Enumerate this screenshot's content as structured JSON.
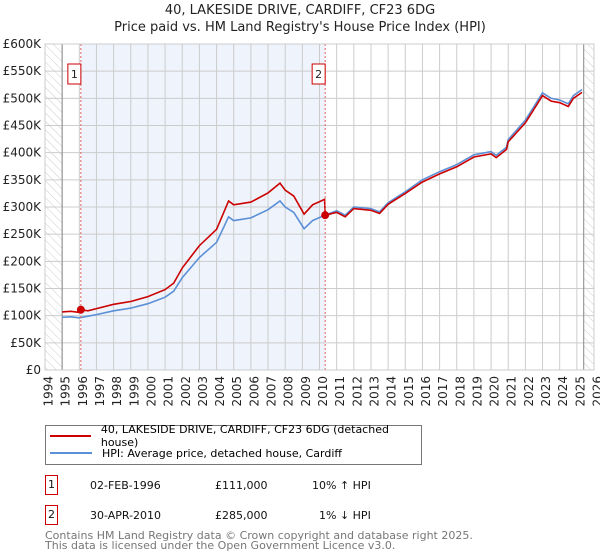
{
  "chart_data": {
    "type": "line",
    "title": "40, LAKESIDE DRIVE, CARDIFF, CF23 6DG",
    "subtitle": "Price paid vs. HM Land Registry's House Price Index (HPI)",
    "xlim": [
      1994,
      2026
    ],
    "ylim": [
      0,
      600000
    ],
    "x_ticks": [
      "1994",
      "1995",
      "1996",
      "1997",
      "1998",
      "1999",
      "2000",
      "2001",
      "2002",
      "2003",
      "2004",
      "2005",
      "2006",
      "2007",
      "2008",
      "2009",
      "2010",
      "2011",
      "2012",
      "2013",
      "2014",
      "2015",
      "2016",
      "2017",
      "2018",
      "2019",
      "2020",
      "2021",
      "2022",
      "2023",
      "2024",
      "2025",
      "2026"
    ],
    "y_ticks": [
      {
        "v": 0,
        "label": "£0"
      },
      {
        "v": 50000,
        "label": "£50K"
      },
      {
        "v": 100000,
        "label": "£100K"
      },
      {
        "v": 150000,
        "label": "£150K"
      },
      {
        "v": 200000,
        "label": "£200K"
      },
      {
        "v": 250000,
        "label": "£250K"
      },
      {
        "v": 300000,
        "label": "£300K"
      },
      {
        "v": 350000,
        "label": "£350K"
      },
      {
        "v": 400000,
        "label": "£400K"
      },
      {
        "v": 450000,
        "label": "£450K"
      },
      {
        "v": 500000,
        "label": "£500K"
      },
      {
        "v": 550000,
        "label": "£550K"
      },
      {
        "v": 600000,
        "label": "£600K"
      }
    ],
    "grid": true,
    "series": [
      {
        "name": "40, LAKESIDE DRIVE, CARDIFF, CF23 6DG (detached house)",
        "color": "#cc0000",
        "x": [
          1995,
          1995.5,
          1996,
          1996.09,
          1996.5,
          1997,
          1998,
          1999,
          2000,
          2001,
          2001.5,
          2002,
          2003,
          2004,
          2004.7,
          2005,
          2006,
          2007,
          2007.7,
          2008,
          2008.5,
          2009.1,
          2009.6,
          2010.3,
          2010.33,
          2011,
          2011.5,
          2012,
          2013,
          2013.5,
          2014,
          2015,
          2016,
          2017,
          2018,
          2019,
          2020,
          2020.3,
          2020.9,
          2021,
          2022,
          2022.5,
          2023,
          2023.5,
          2024,
          2024.5,
          2024.8,
          2025.3
        ],
        "y": [
          107000,
          108000,
          106000,
          111000,
          109000,
          113000,
          121000,
          126000,
          135000,
          148000,
          160000,
          188000,
          229000,
          259000,
          311000,
          304000,
          309000,
          326000,
          344000,
          331000,
          320000,
          287000,
          304000,
          314000,
          285000,
          290000,
          282000,
          297000,
          294000,
          288000,
          305000,
          325000,
          346000,
          361000,
          374000,
          392000,
          398000,
          391000,
          406000,
          420000,
          455000,
          480000,
          505000,
          495000,
          492000,
          485000,
          500000,
          511000
        ]
      },
      {
        "name": "HPI: Average price, detached house, Cardiff",
        "color": "#5b8fd6",
        "x": [
          1995,
          1995.5,
          1996,
          1996.5,
          1997,
          1998,
          1999,
          2000,
          2001,
          2001.5,
          2002,
          2003,
          2004,
          2004.7,
          2005,
          2006,
          2007,
          2007.7,
          2008,
          2008.5,
          2009.1,
          2009.6,
          2010.3,
          2011,
          2011.5,
          2012,
          2013,
          2013.5,
          2014,
          2015,
          2016,
          2017,
          2018,
          2019,
          2020,
          2020.3,
          2020.9,
          2021,
          2022,
          2022.5,
          2023,
          2023.5,
          2024,
          2024.5,
          2024.8,
          2025.3
        ],
        "y": [
          97000,
          98000,
          96000,
          99000,
          102000,
          109000,
          114000,
          122000,
          134000,
          145000,
          170000,
          207000,
          235000,
          282000,
          275000,
          280000,
          295000,
          311000,
          300000,
          290000,
          260000,
          275000,
          285000,
          293000,
          285000,
          300000,
          297000,
          291000,
          308000,
          328000,
          350000,
          365000,
          378000,
          396000,
          402000,
          395000,
          410000,
          424000,
          460000,
          485000,
          510000,
          500000,
          497000,
          490000,
          505000,
          516000
        ]
      }
    ],
    "sales": [
      {
        "label": "1",
        "x": 1996.09,
        "y": 111000
      },
      {
        "label": "2",
        "x": 2010.33,
        "y": 285000
      }
    ],
    "data_end": 2025.4
  },
  "legend": {
    "property": "40, LAKESIDE DRIVE, CARDIFF, CF23 6DG (detached house)",
    "hpi": "HPI: Average price, detached house, Cardiff"
  },
  "transactions": [
    {
      "num": "1",
      "date": "02-FEB-1996",
      "price": "£111,000",
      "hpi": "10% ↑ HPI"
    },
    {
      "num": "2",
      "date": "30-APR-2010",
      "price": "£285,000",
      "hpi": "1% ↓ HPI"
    }
  ],
  "footer": [
    "Contains HM Land Registry data © Crown copyright and database right 2025.",
    "This data is licensed under the Open Government Licence v3.0."
  ]
}
